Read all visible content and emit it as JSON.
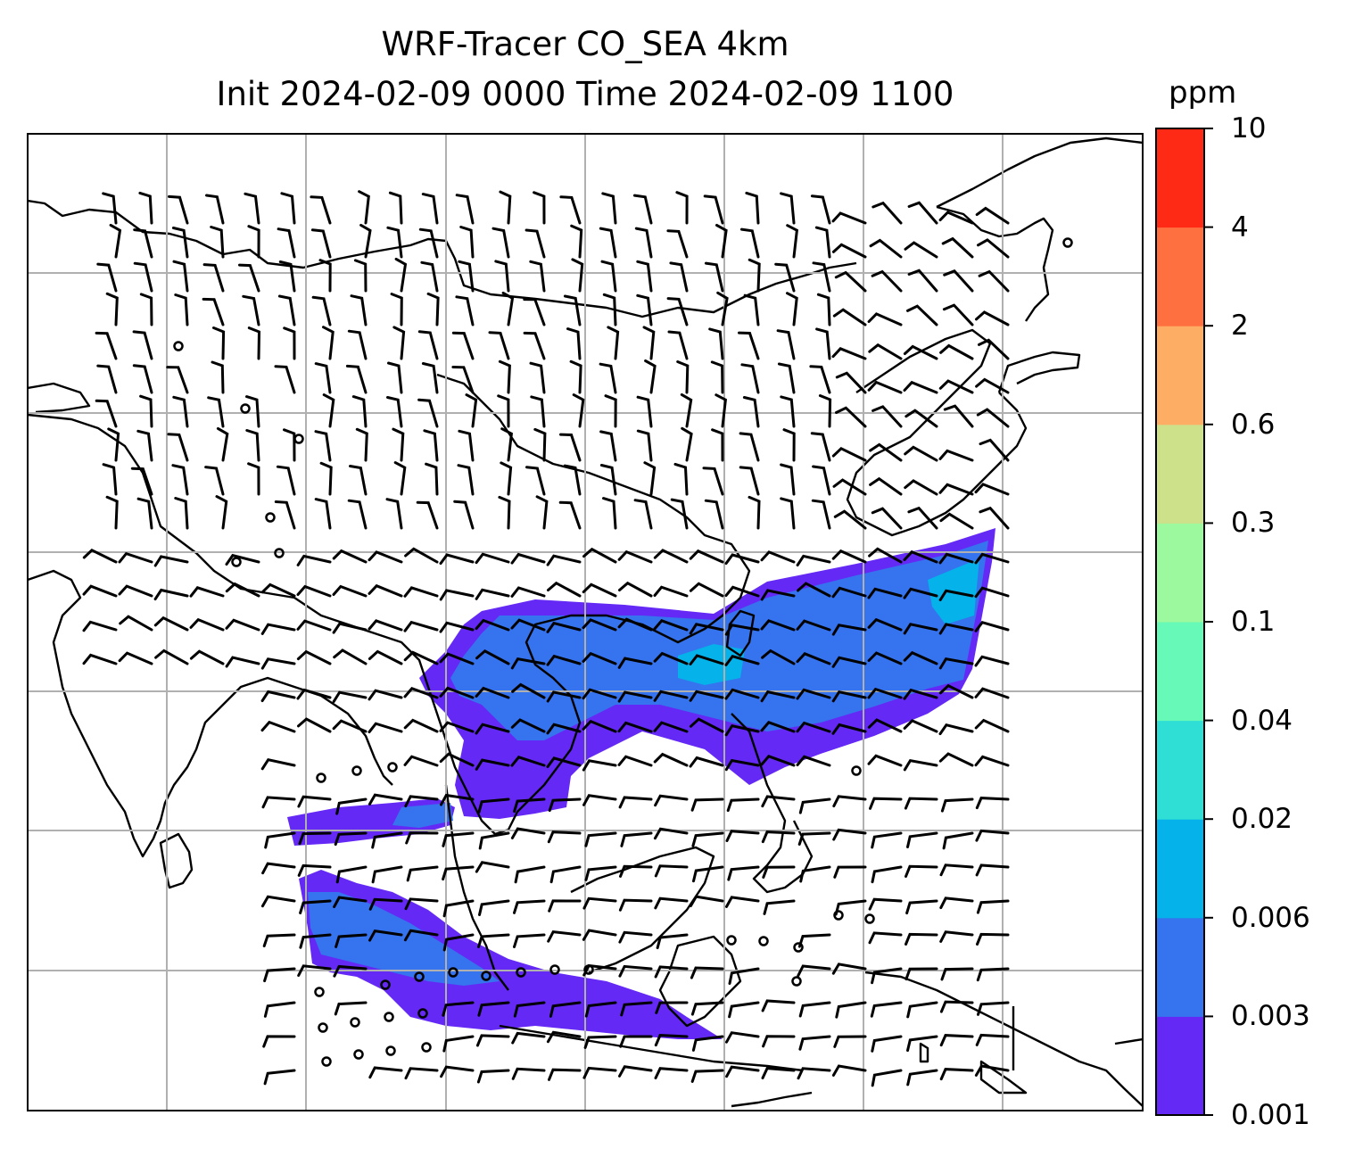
{
  "title": {
    "line1": "WRF-Tracer CO_SEA 4km",
    "line2": "Init 2024-02-09 0000 Time 2024-02-09 1100"
  },
  "colorbar": {
    "unit": "ppm",
    "levels": [
      "0.001",
      "0.003",
      "0.006",
      "0.02",
      "0.04",
      "0.1",
      "0.3",
      "0.6",
      "2",
      "4",
      "10"
    ],
    "colors": [
      "#6429f5",
      "#3673ee",
      "#05b2ea",
      "#2fdfd5",
      "#66f9b8",
      "#9cf99d",
      "#cde08a",
      "#fdae64",
      "#fe7040",
      "#fe2a15"
    ]
  },
  "map": {
    "gridlines": true,
    "wind_barbs": true,
    "calm_markers": true
  }
}
